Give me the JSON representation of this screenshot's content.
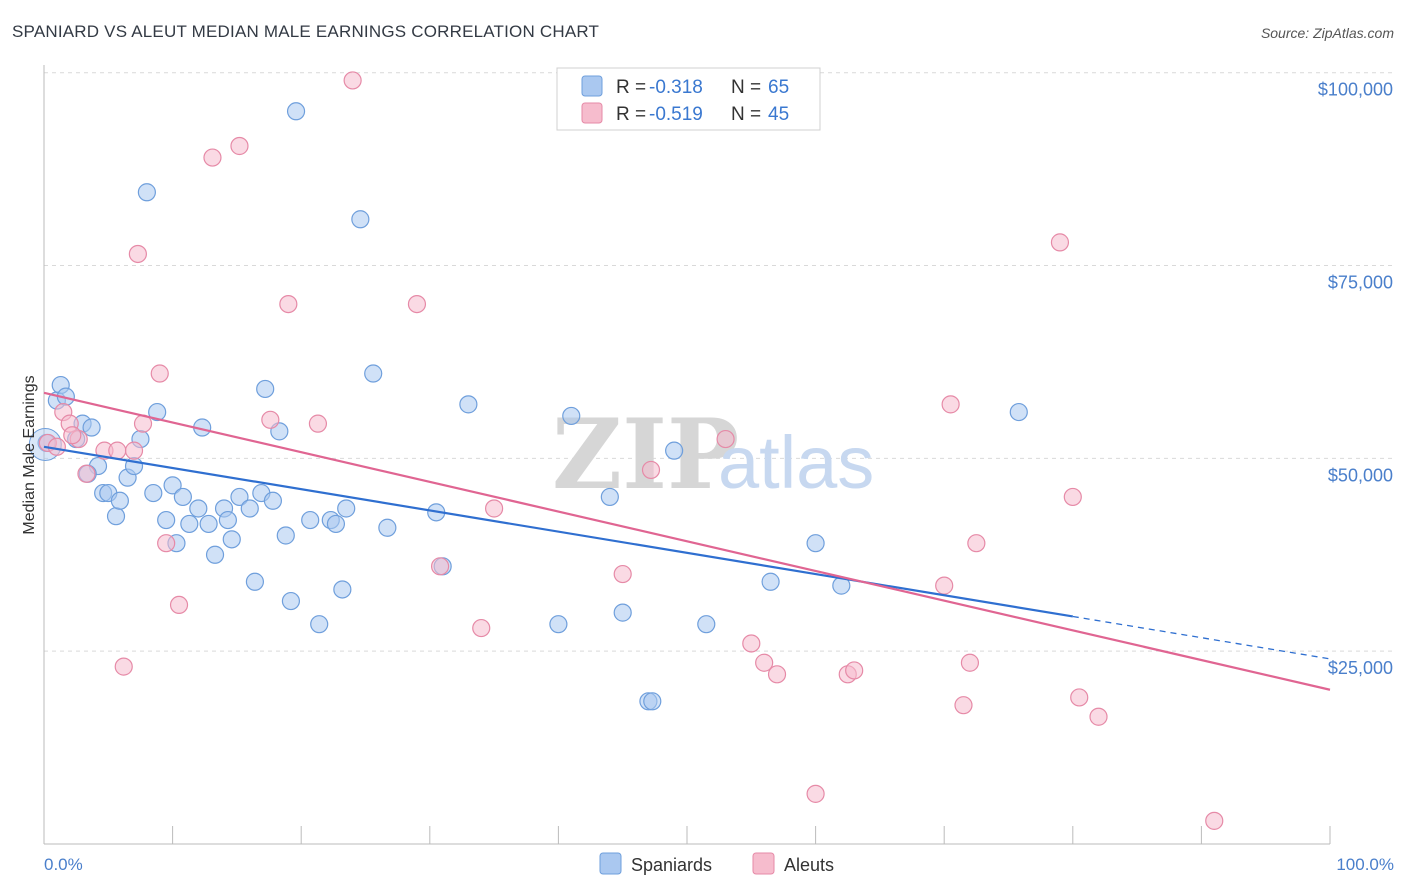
{
  "title": "SPANIARD VS ALEUT MEDIAN MALE EARNINGS CORRELATION CHART",
  "source": "Source: ZipAtlas.com",
  "watermark": {
    "zip": "ZIP",
    "atlas": "atlas"
  },
  "colors": {
    "blue_fill": "#aac8f0",
    "blue_stroke": "#6f9fdc",
    "blue_line": "#2f6fd0",
    "pink_fill": "#f6bccd",
    "pink_stroke": "#e68aa7",
    "pink_line": "#e06592",
    "tick_text": "#4a7fcb",
    "grid": "#d9d9d9"
  },
  "legend": {
    "rows": [
      {
        "r_label": "R =",
        "r_value": "-0.318",
        "n_label": "N =",
        "n_value": "65",
        "series": "Spaniards"
      },
      {
        "r_label": "R =",
        "r_value": "-0.519",
        "n_label": "N =",
        "n_value": "45",
        "series": "Aleuts"
      }
    ]
  },
  "chart_data": {
    "type": "scatter",
    "title": "SPANIARD VS ALEUT MEDIAN MALE EARNINGS CORRELATION CHART",
    "xlabel": "",
    "ylabel": "Median Male Earnings",
    "xlim": [
      0,
      100
    ],
    "ylim": [
      0,
      101000
    ],
    "x_tick_labels": [
      "0.0%",
      "100.0%"
    ],
    "y_ticks": [
      25000,
      50000,
      75000,
      100000
    ],
    "y_tick_labels": [
      "$25,000",
      "$50,000",
      "$75,000",
      "$100,000"
    ],
    "legend_position": "bottom-center",
    "series": [
      {
        "name": "Spaniards",
        "color": "#6f9fdc",
        "trend": {
          "x0": 0,
          "y0": 51500,
          "x1": 100,
          "y1": 24000,
          "solid_until_x": 80
        },
        "points": [
          [
            0.2,
            52000
          ],
          [
            1.0,
            57500
          ],
          [
            1.3,
            59500
          ],
          [
            1.7,
            58000
          ],
          [
            2.5,
            52500
          ],
          [
            3.0,
            54500
          ],
          [
            3.7,
            54000
          ],
          [
            4.2,
            49000
          ],
          [
            4.6,
            45500
          ],
          [
            5.0,
            45500
          ],
          [
            5.6,
            42500
          ],
          [
            5.9,
            44500
          ],
          [
            6.5,
            47500
          ],
          [
            7.0,
            49000
          ],
          [
            7.5,
            52500
          ],
          [
            8.0,
            84500
          ],
          [
            8.5,
            45500
          ],
          [
            8.8,
            56000
          ],
          [
            9.5,
            42000
          ],
          [
            10.0,
            46500
          ],
          [
            10.3,
            39000
          ],
          [
            10.8,
            45000
          ],
          [
            11.3,
            41500
          ],
          [
            12.0,
            43500
          ],
          [
            12.3,
            54000
          ],
          [
            12.8,
            41500
          ],
          [
            13.3,
            37500
          ],
          [
            14.0,
            43500
          ],
          [
            14.3,
            42000
          ],
          [
            14.6,
            39500
          ],
          [
            15.2,
            45000
          ],
          [
            16.0,
            43500
          ],
          [
            16.4,
            34000
          ],
          [
            16.9,
            45500
          ],
          [
            17.2,
            59000
          ],
          [
            17.8,
            44500
          ],
          [
            18.3,
            53500
          ],
          [
            18.8,
            40000
          ],
          [
            19.2,
            31500
          ],
          [
            19.6,
            95000
          ],
          [
            20.7,
            42000
          ],
          [
            21.4,
            28500
          ],
          [
            22.3,
            42000
          ],
          [
            22.7,
            41500
          ],
          [
            23.2,
            33000
          ],
          [
            23.5,
            43500
          ],
          [
            24.6,
            81000
          ],
          [
            25.6,
            61000
          ],
          [
            26.7,
            41000
          ],
          [
            30.5,
            43000
          ],
          [
            31.0,
            36000
          ],
          [
            33.0,
            57000
          ],
          [
            40.0,
            28500
          ],
          [
            41.0,
            55500
          ],
          [
            44.0,
            45000
          ],
          [
            45.0,
            30000
          ],
          [
            47.0,
            18500
          ],
          [
            47.3,
            18500
          ],
          [
            49.0,
            51000
          ],
          [
            51.5,
            28500
          ],
          [
            56.5,
            34000
          ],
          [
            60.0,
            39000
          ],
          [
            75.8,
            56000
          ],
          [
            62.0,
            33500
          ],
          [
            3.4,
            48000
          ]
        ]
      },
      {
        "name": "Aleuts",
        "color": "#e68aa7",
        "trend": {
          "x0": 0,
          "y0": 58500,
          "x1": 100,
          "y1": 20000
        },
        "points": [
          [
            0.3,
            52000
          ],
          [
            1.0,
            51500
          ],
          [
            1.5,
            56000
          ],
          [
            2.0,
            54500
          ],
          [
            2.7,
            52500
          ],
          [
            3.3,
            48000
          ],
          [
            4.7,
            51000
          ],
          [
            5.7,
            51000
          ],
          [
            6.2,
            23000
          ],
          [
            7.0,
            51000
          ],
          [
            7.3,
            76500
          ],
          [
            7.7,
            54500
          ],
          [
            9.0,
            61000
          ],
          [
            9.5,
            39000
          ],
          [
            10.5,
            31000
          ],
          [
            13.1,
            89000
          ],
          [
            15.2,
            90500
          ],
          [
            17.6,
            55000
          ],
          [
            19.0,
            70000
          ],
          [
            21.3,
            54500
          ],
          [
            24.0,
            99000
          ],
          [
            29.0,
            70000
          ],
          [
            30.8,
            36000
          ],
          [
            34.0,
            28000
          ],
          [
            35.0,
            43500
          ],
          [
            45.0,
            35000
          ],
          [
            47.2,
            48500
          ],
          [
            53.0,
            52500
          ],
          [
            55.0,
            26000
          ],
          [
            56.0,
            23500
          ],
          [
            57.0,
            22000
          ],
          [
            60.0,
            6500
          ],
          [
            62.5,
            22000
          ],
          [
            63.0,
            22500
          ],
          [
            70.0,
            33500
          ],
          [
            70.5,
            57000
          ],
          [
            71.5,
            18000
          ],
          [
            72.0,
            23500
          ],
          [
            72.5,
            39000
          ],
          [
            79.0,
            78000
          ],
          [
            80.0,
            45000
          ],
          [
            80.5,
            19000
          ],
          [
            82.0,
            16500
          ],
          [
            91.0,
            3000
          ],
          [
            2.2,
            53000
          ]
        ]
      }
    ]
  }
}
